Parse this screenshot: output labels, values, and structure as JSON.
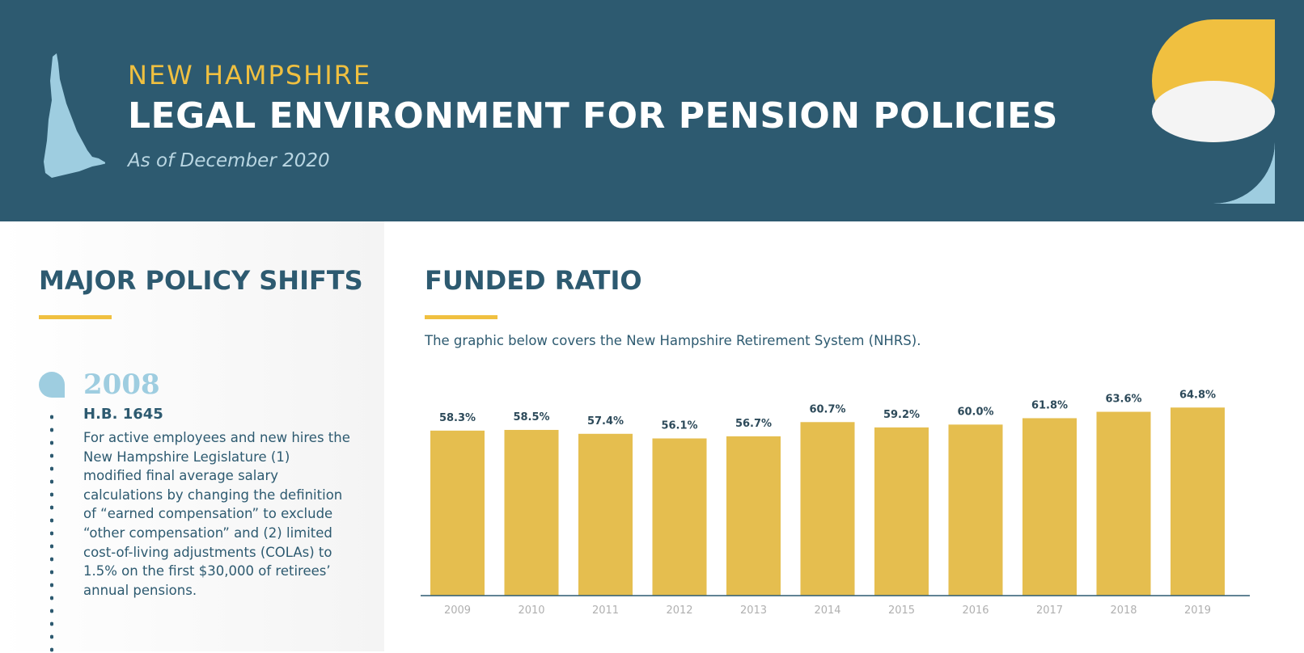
{
  "header": {
    "kicker": "NEW HAMPSHIRE",
    "title": "LEGAL ENVIRONMENT FOR PENSION POLICIES",
    "subtitle": "As of December 2020"
  },
  "left": {
    "section_title": "MAJOR POLICY SHIFTS",
    "entries": [
      {
        "year": "2008",
        "bill": "H.B. 1645",
        "text": "For active employees and new hires the New Hampshire Legislature (1) modified final average salary calculations by changing the definition of “earned compensation” to exclude “other compensation” and (2) limited cost-of-living adjustments (COLAs) to 1.5% on the first $30,000 of retirees’ annual pensions."
      }
    ]
  },
  "right": {
    "section_title": "FUNDED RATIO",
    "intro": "The graphic below covers the New Hampshire Retirement System (NHRS)."
  },
  "colors": {
    "header_bg": "#2d5a70",
    "accent_yellow": "#f0c040",
    "bar": "#e5be4f",
    "light_blue": "#9ecde0"
  },
  "chart_data": {
    "type": "bar",
    "categories": [
      "2009",
      "2010",
      "2011",
      "2012",
      "2013",
      "2014",
      "2015",
      "2016",
      "2017",
      "2018",
      "2019"
    ],
    "values": [
      58.3,
      58.5,
      57.4,
      56.1,
      56.7,
      60.7,
      59.2,
      60.0,
      61.8,
      63.6,
      64.8
    ],
    "data_labels": [
      "58.3%",
      "58.5%",
      "57.4%",
      "56.1%",
      "56.7%",
      "60.7%",
      "59.2%",
      "60.0%",
      "61.8%",
      "63.6%",
      "64.8%"
    ],
    "title": "",
    "xlabel": "",
    "ylabel": "",
    "ylim": [
      0,
      66
    ],
    "grid": false,
    "legend": "none"
  }
}
